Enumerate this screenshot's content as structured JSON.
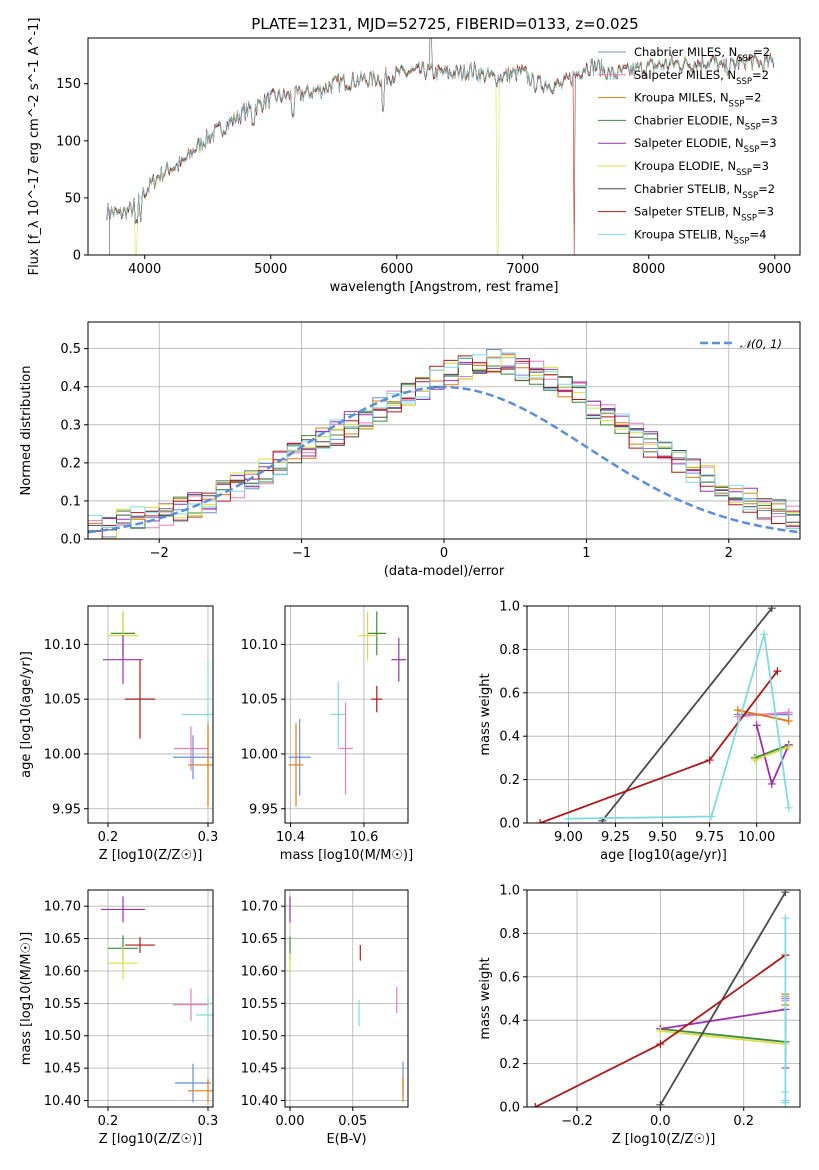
{
  "title": "PLATE=1231, MJD=52725, FIBERID=0133, z=0.025",
  "colors": {
    "Chabrier MILES": "#6b8fd8",
    "Salpeter MILES": "#e87fc0",
    "Kroupa MILES": "#e07b10",
    "Chabrier ELODIE": "#3f8a3f",
    "Salpeter ELODIE": "#9b30b0",
    "Kroupa ELODIE": "#d9df40",
    "Chabrier STELIB": "#4a4a4a",
    "Salpeter STELIB": "#b01818",
    "Kroupa STELIB": "#80dbe0"
  },
  "chart_data": [
    {
      "type": "line",
      "id": "spectrum",
      "title": "PLATE=1231, MJD=52725, FIBERID=0133, z=0.025",
      "xlabel": "wavelength [Angstrom, rest frame]",
      "ylabel": "Flux [f_λ 10^-17 erg cm^-2 s^-1 A^-1]",
      "xlim": [
        3550,
        9200
      ],
      "ylim": [
        0,
        190
      ],
      "xticks": [
        4000,
        5000,
        6000,
        7000,
        8000,
        9000
      ],
      "yticks": [
        0,
        50,
        100,
        150
      ],
      "legend_position": "top-right",
      "legend": [
        {
          "name": "Chabrier MILES",
          "nssp": "2"
        },
        {
          "name": "Salpeter MILES",
          "nssp": "2"
        },
        {
          "name": "Kroupa MILES",
          "nssp": "2"
        },
        {
          "name": "Chabrier ELODIE",
          "nssp": "3"
        },
        {
          "name": "Salpeter ELODIE",
          "nssp": "3"
        },
        {
          "name": "Kroupa ELODIE",
          "nssp": "3"
        },
        {
          "name": "Chabrier STELIB",
          "nssp": "2"
        },
        {
          "name": "Salpeter STELIB",
          "nssp": "3"
        },
        {
          "name": "Kroupa STELIB",
          "nssp": "4"
        }
      ],
      "continuum": [
        [
          3700,
          38
        ],
        [
          3800,
          36
        ],
        [
          3900,
          40
        ],
        [
          4000,
          55
        ],
        [
          4100,
          68
        ],
        [
          4200,
          76
        ],
        [
          4300,
          80
        ],
        [
          4400,
          93
        ],
        [
          4500,
          103
        ],
        [
          4600,
          110
        ],
        [
          4700,
          118
        ],
        [
          4800,
          126
        ],
        [
          4900,
          131
        ],
        [
          5000,
          137
        ],
        [
          5100,
          139
        ],
        [
          5200,
          140
        ],
        [
          5300,
          142
        ],
        [
          5400,
          145
        ],
        [
          5500,
          150
        ],
        [
          5600,
          152
        ],
        [
          5700,
          153
        ],
        [
          5800,
          154
        ],
        [
          5900,
          156
        ],
        [
          6000,
          158
        ],
        [
          6100,
          160
        ],
        [
          6200,
          161
        ],
        [
          6300,
          160
        ],
        [
          6400,
          159
        ],
        [
          6500,
          159
        ],
        [
          6600,
          162
        ],
        [
          6700,
          157
        ],
        [
          6800,
          155
        ],
        [
          6900,
          158
        ],
        [
          7000,
          160
        ],
        [
          7100,
          150
        ],
        [
          7200,
          150
        ],
        [
          7300,
          148
        ],
        [
          7400,
          156
        ],
        [
          7500,
          165
        ],
        [
          7600,
          165
        ],
        [
          7700,
          158
        ],
        [
          7800,
          160
        ],
        [
          7900,
          162
        ],
        [
          8000,
          165
        ],
        [
          8100,
          166
        ],
        [
          8200,
          168
        ],
        [
          8300,
          167
        ],
        [
          8400,
          168
        ],
        [
          8500,
          170
        ],
        [
          8600,
          163
        ],
        [
          8700,
          168
        ],
        [
          8800,
          170
        ],
        [
          8900,
          167
        ],
        [
          9000,
          170
        ]
      ],
      "features": [
        {
          "x": 3720,
          "y": 0,
          "label": "gap"
        },
        {
          "x": 3930,
          "y": 0,
          "label": "drop"
        },
        {
          "x": 6800,
          "y": 0,
          "label": "drop"
        },
        {
          "x": 7410,
          "y": 0,
          "label": "drop"
        },
        {
          "x": 6270,
          "y": 190,
          "label": "spike"
        }
      ]
    },
    {
      "type": "line",
      "id": "residual-histogram",
      "xlabel": "(data-model)/error",
      "ylabel": "Normed distribution",
      "xlim": [
        -2.5,
        2.5
      ],
      "ylim": [
        0,
        0.57
      ],
      "xticks": [
        -2,
        -1,
        0,
        1,
        2
      ],
      "yticks": [
        0.0,
        0.1,
        0.2,
        0.3,
        0.4,
        0.5
      ],
      "legend_position": "top-right",
      "reference_curve": "𝒩(0, 1)",
      "bin_edges_start": -2.5,
      "bin_width": 0.1,
      "base_histogram": [
        0.03,
        0.035,
        0.045,
        0.05,
        0.055,
        0.06,
        0.08,
        0.09,
        0.1,
        0.12,
        0.14,
        0.16,
        0.18,
        0.2,
        0.22,
        0.24,
        0.26,
        0.28,
        0.3,
        0.32,
        0.34,
        0.36,
        0.38,
        0.4,
        0.42,
        0.44,
        0.45,
        0.46,
        0.47,
        0.46,
        0.45,
        0.44,
        0.42,
        0.4,
        0.38,
        0.35,
        0.33,
        0.3,
        0.27,
        0.25,
        0.23,
        0.2,
        0.18,
        0.16,
        0.14,
        0.12,
        0.1,
        0.08,
        0.07,
        0.06
      ]
    },
    {
      "type": "scatter",
      "id": "age-vs-Z",
      "xlabel": "Z [log10(Z/Z☉)]",
      "ylabel": "age  [log10(age/yr)]",
      "xlim": [
        0.18,
        0.305
      ],
      "ylim": [
        9.937,
        10.135
      ],
      "xticks": [
        0.2,
        0.3
      ],
      "yticks": [
        9.95,
        10.0,
        10.05,
        10.1
      ],
      "points": [
        {
          "series": "Chabrier ELODIE",
          "x": 0.215,
          "y": 10.11,
          "xerr": 0.012,
          "yerr": 0.02
        },
        {
          "series": "Kroupa ELODIE",
          "x": 0.215,
          "y": 10.108,
          "xerr": 0.015,
          "yerr": 0.022
        },
        {
          "series": "Salpeter ELODIE",
          "x": 0.215,
          "y": 10.086,
          "xerr": 0.02,
          "yerr": 0.022
        },
        {
          "series": "Salpeter STELIB",
          "x": 0.232,
          "y": 10.05,
          "xerr": 0.015,
          "yerr": 0.036
        },
        {
          "series": "Kroupa STELIB",
          "x": 0.3,
          "y": 10.036,
          "xerr": 0.026,
          "yerr": 0.05
        },
        {
          "series": "Salpeter MILES",
          "x": 0.283,
          "y": 10.005,
          "xerr": 0.017,
          "yerr": 0.02
        },
        {
          "series": "Chabrier MILES",
          "x": 0.285,
          "y": 9.997,
          "xerr": 0.02,
          "yerr": 0.02
        },
        {
          "series": "Kroupa MILES",
          "x": 0.3,
          "y": 9.99,
          "xerr": 0.02,
          "yerr": 0.038
        }
      ]
    },
    {
      "type": "scatter",
      "id": "age-vs-mass",
      "xlabel": "mass [log10(M/M☉)]",
      "ylabel": "",
      "xlim": [
        10.385,
        10.72
      ],
      "ylim": [
        9.937,
        10.135
      ],
      "xticks": [
        10.4,
        10.6
      ],
      "yticks": [
        9.95,
        10.0,
        10.05,
        10.1
      ],
      "points": [
        {
          "series": "Chabrier ELODIE",
          "x": 10.635,
          "y": 10.11,
          "xerr": 0.025,
          "yerr": 0.02
        },
        {
          "series": "Kroupa ELODIE",
          "x": 10.61,
          "y": 10.108,
          "xerr": 0.025,
          "yerr": 0.022
        },
        {
          "series": "Salpeter ELODIE",
          "x": 10.695,
          "y": 10.086,
          "xerr": 0.02,
          "yerr": 0.02
        },
        {
          "series": "Salpeter STELIB",
          "x": 10.635,
          "y": 10.05,
          "xerr": 0.015,
          "yerr": 0.012
        },
        {
          "series": "Kroupa STELIB",
          "x": 10.53,
          "y": 10.036,
          "xerr": 0.02,
          "yerr": 0.03
        },
        {
          "series": "Salpeter MILES",
          "x": 10.55,
          "y": 10.005,
          "xerr": 0.02,
          "yerr": 0.042
        },
        {
          "series": "Chabrier MILES",
          "x": 10.425,
          "y": 9.997,
          "xerr": 0.03,
          "yerr": 0.035
        },
        {
          "series": "Kroupa MILES",
          "x": 10.415,
          "y": 9.99,
          "xerr": 0.02,
          "yerr": 0.038
        }
      ]
    },
    {
      "type": "line",
      "id": "mass-weight-vs-age",
      "xlabel": "age  [log10(age/yr)]",
      "ylabel": "mass weight",
      "xlim": [
        8.78,
        10.23
      ],
      "ylim": [
        0,
        1.0
      ],
      "xticks": [
        9.0,
        9.25,
        9.5,
        9.75,
        10.0
      ],
      "xtick_labels": [
        "9.00",
        "9.25",
        "9.50",
        "9.75",
        "10.00"
      ],
      "yticks": [
        0.0,
        0.2,
        0.4,
        0.6,
        0.8,
        1.0
      ],
      "series": [
        {
          "name": "Chabrier MILES",
          "x": [
            9.9,
            10.17
          ],
          "y": [
            0.5,
            0.5
          ]
        },
        {
          "name": "Salpeter MILES",
          "x": [
            9.9,
            10.17
          ],
          "y": [
            0.49,
            0.51
          ]
        },
        {
          "name": "Kroupa MILES",
          "x": [
            9.9,
            10.17
          ],
          "y": [
            0.52,
            0.47
          ]
        },
        {
          "name": "Chabrier ELODIE",
          "x": [
            9.99,
            10.17
          ],
          "y": [
            0.3,
            0.36
          ]
        },
        {
          "name": "Salpeter ELODIE",
          "x": [
            10.0,
            10.08,
            10.17
          ],
          "y": [
            0.45,
            0.18,
            0.36
          ]
        },
        {
          "name": "Kroupa ELODIE",
          "x": [
            9.99,
            10.17
          ],
          "y": [
            0.29,
            0.35
          ]
        },
        {
          "name": "Chabrier STELIB",
          "x": [
            9.18,
            10.08
          ],
          "y": [
            0.01,
            0.99
          ]
        },
        {
          "name": "Salpeter STELIB",
          "x": [
            8.85,
            9.75,
            10.11
          ],
          "y": [
            0.0,
            0.29,
            0.7
          ]
        },
        {
          "name": "Kroupa STELIB",
          "x": [
            9.0,
            9.76,
            10.04,
            10.17
          ],
          "y": [
            0.02,
            0.03,
            0.87,
            0.07
          ]
        }
      ]
    },
    {
      "type": "scatter",
      "id": "mass-vs-Z",
      "xlabel": "Z [log10(Z/Z☉)]",
      "ylabel": "mass [log10(M/M☉)]",
      "xlim": [
        0.18,
        0.305
      ],
      "ylim": [
        10.39,
        10.725
      ],
      "xticks": [
        0.2,
        0.3
      ],
      "yticks": [
        10.4,
        10.45,
        10.5,
        10.55,
        10.6,
        10.65,
        10.7
      ],
      "points": [
        {
          "series": "Salpeter ELODIE",
          "x": 0.215,
          "y": 10.695,
          "xerr": 0.022,
          "yerr": 0.02
        },
        {
          "series": "Salpeter STELIB",
          "x": 0.232,
          "y": 10.64,
          "xerr": 0.015,
          "yerr": 0.012
        },
        {
          "series": "Chabrier ELODIE",
          "x": 0.215,
          "y": 10.635,
          "xerr": 0.015,
          "yerr": 0.02
        },
        {
          "series": "Kroupa ELODIE",
          "x": 0.215,
          "y": 10.612,
          "xerr": 0.015,
          "yerr": 0.025
        },
        {
          "series": "Salpeter MILES",
          "x": 0.283,
          "y": 10.548,
          "xerr": 0.018,
          "yerr": 0.025
        },
        {
          "series": "Kroupa STELIB",
          "x": 0.3,
          "y": 10.532,
          "xerr": 0.012,
          "yerr": 0.03
        },
        {
          "series": "Chabrier MILES",
          "x": 0.285,
          "y": 10.427,
          "xerr": 0.018,
          "yerr": 0.03
        },
        {
          "series": "Kroupa MILES",
          "x": 0.3,
          "y": 10.415,
          "xerr": 0.02,
          "yerr": 0.018
        }
      ]
    },
    {
      "type": "scatter",
      "id": "mass-vs-EBV",
      "xlabel": "E(B-V)",
      "ylabel": "",
      "xlim": [
        -0.004,
        0.094
      ],
      "ylim": [
        10.39,
        10.725
      ],
      "xticks": [
        0.0,
        0.05
      ],
      "xtick_labels": [
        "0.00",
        "0.05"
      ],
      "yticks": [
        10.4,
        10.45,
        10.5,
        10.55,
        10.6,
        10.65,
        10.7
      ],
      "points": [
        {
          "series": "Salpeter ELODIE",
          "x": 0.0,
          "y": 10.695,
          "xerr": 0,
          "yerr": 0.02
        },
        {
          "series": "Chabrier ELODIE",
          "x": 0.0,
          "y": 10.635,
          "xerr": 0,
          "yerr": 0.018
        },
        {
          "series": "Kroupa ELODIE",
          "x": 0.0,
          "y": 10.612,
          "xerr": 0,
          "yerr": 0.015
        },
        {
          "series": "Salpeter STELIB",
          "x": 0.056,
          "y": 10.628,
          "xerr": 0,
          "yerr": 0.012
        },
        {
          "series": "Kroupa STELIB",
          "x": 0.055,
          "y": 10.535,
          "xerr": 0,
          "yerr": 0.02
        },
        {
          "series": "Salpeter MILES",
          "x": 0.085,
          "y": 10.555,
          "xerr": 0,
          "yerr": 0.02
        },
        {
          "series": "Chabrier MILES",
          "x": 0.09,
          "y": 10.435,
          "xerr": 0,
          "yerr": 0.025
        },
        {
          "series": "Kroupa MILES",
          "x": 0.09,
          "y": 10.418,
          "xerr": 0,
          "yerr": 0.02
        }
      ]
    },
    {
      "type": "line",
      "id": "mass-weight-vs-Z",
      "xlabel": "Z [log10(Z/Z☉)]",
      "ylabel": "mass weight",
      "xlim": [
        -0.32,
        0.335
      ],
      "ylim": [
        0,
        1.0
      ],
      "xticks": [
        -0.2,
        0.0,
        0.2
      ],
      "xtick_labels": [
        "−0.2",
        "0.0",
        "0.2"
      ],
      "yticks": [
        0.0,
        0.2,
        0.4,
        0.6,
        0.8,
        1.0
      ],
      "series": [
        {
          "name": "Chabrier MILES",
          "x": [
            0.3,
            0.3
          ],
          "y": [
            0.5,
            0.5
          ]
        },
        {
          "name": "Salpeter MILES",
          "x": [
            0.3,
            0.3
          ],
          "y": [
            0.49,
            0.51
          ]
        },
        {
          "name": "Kroupa MILES",
          "x": [
            0.3,
            0.3
          ],
          "y": [
            0.52,
            0.47
          ]
        },
        {
          "name": "Chabrier ELODIE",
          "x": [
            0.0,
            0.3
          ],
          "y": [
            0.36,
            0.3
          ]
        },
        {
          "name": "Salpeter ELODIE",
          "x": [
            0.0,
            0.3,
            0.3
          ],
          "y": [
            0.36,
            0.45,
            0.18
          ]
        },
        {
          "name": "Kroupa ELODIE",
          "x": [
            0.0,
            0.3
          ],
          "y": [
            0.35,
            0.29
          ]
        },
        {
          "name": "Chabrier STELIB",
          "x": [
            0.0,
            0.3
          ],
          "y": [
            0.01,
            0.99
          ]
        },
        {
          "name": "Salpeter STELIB",
          "x": [
            -0.3,
            0.0,
            0.3
          ],
          "y": [
            0.0,
            0.29,
            0.7
          ]
        },
        {
          "name": "Kroupa STELIB",
          "x": [
            0.3,
            0.3,
            0.3,
            0.3
          ],
          "y": [
            0.02,
            0.03,
            0.87,
            0.07
          ]
        }
      ]
    }
  ]
}
